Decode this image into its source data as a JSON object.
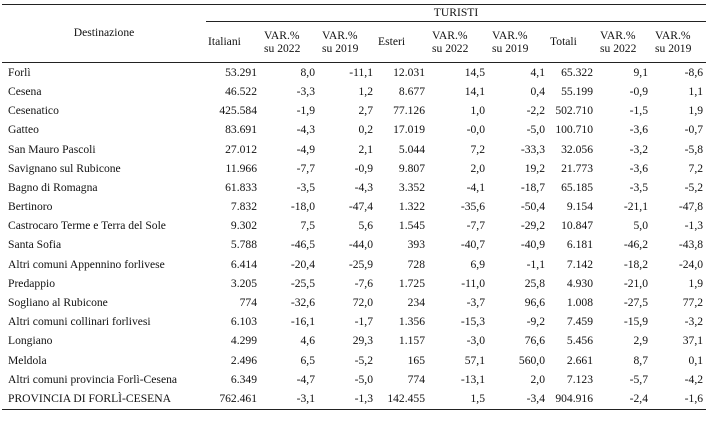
{
  "header": {
    "destination_label": "Destinazione",
    "group_label": "TURISTI",
    "columns": [
      "Italiani",
      "VAR.%\nsu 2022",
      "VAR.%\nsu 2019",
      "Esteri",
      "VAR.%\nsu 2022",
      "VAR.%\nsu 2019",
      "Totali",
      "VAR.%\nsu 2022",
      "VAR.%\nsu 2019"
    ]
  },
  "rows": [
    [
      "Forlì",
      "53.291",
      "8,0",
      "-11,1",
      "12.031",
      "14,5",
      "4,1",
      "65.322",
      "9,1",
      "-8,6"
    ],
    [
      "Cesena",
      "46.522",
      "-3,3",
      "1,2",
      "8.677",
      "14,1",
      "0,4",
      "55.199",
      "-0,9",
      "1,1"
    ],
    [
      "Cesenatico",
      "425.584",
      "-1,9",
      "2,7",
      "77.126",
      "1,0",
      "-2,2",
      "502.710",
      "-1,5",
      "1,9"
    ],
    [
      "Gatteo",
      "83.691",
      "-4,3",
      "0,2",
      "17.019",
      "-0,0",
      "-5,0",
      "100.710",
      "-3,6",
      "-0,7"
    ],
    [
      "San Mauro Pascoli",
      "27.012",
      "-4,9",
      "2,1",
      "5.044",
      "7,2",
      "-33,3",
      "32.056",
      "-3,2",
      "-5,8"
    ],
    [
      "Savignano sul Rubicone",
      "11.966",
      "-7,7",
      "-0,9",
      "9.807",
      "2,0",
      "19,2",
      "21.773",
      "-3,6",
      "7,2"
    ],
    [
      "Bagno di Romagna",
      "61.833",
      "-3,5",
      "-4,3",
      "3.352",
      "-4,1",
      "-18,7",
      "65.185",
      "-3,5",
      "-5,2"
    ],
    [
      "Bertinoro",
      "7.832",
      "-18,0",
      "-47,4",
      "1.322",
      "-35,6",
      "-50,4",
      "9.154",
      "-21,1",
      "-47,8"
    ],
    [
      "Castrocaro Terme e Terra del Sole",
      "9.302",
      "7,5",
      "5,6",
      "1.545",
      "-7,7",
      "-29,2",
      "10.847",
      "5,0",
      "-1,3"
    ],
    [
      "Santa Sofia",
      "5.788",
      "-46,5",
      "-44,0",
      "393",
      "-40,7",
      "-40,9",
      "6.181",
      "-46,2",
      "-43,8"
    ],
    [
      "Altri comuni Appennino forlivese",
      "6.414",
      "-20,4",
      "-25,9",
      "728",
      "6,9",
      "-1,1",
      "7.142",
      "-18,2",
      "-24,0"
    ],
    [
      "Predappio",
      "3.205",
      "-25,5",
      "-7,6",
      "1.725",
      "-11,0",
      "25,8",
      "4.930",
      "-21,0",
      "1,9"
    ],
    [
      "Sogliano al Rubicone",
      "774",
      "-32,6",
      "72,0",
      "234",
      "-3,7",
      "96,6",
      "1.008",
      "-27,5",
      "77,2"
    ],
    [
      "Altri comuni collinari forlivesi",
      "6.103",
      "-16,1",
      "-1,7",
      "1.356",
      "-15,3",
      "-9,2",
      "7.459",
      "-15,9",
      "-3,2"
    ],
    [
      "Longiano",
      "4.299",
      "4,6",
      "29,3",
      "1.157",
      "-3,0",
      "76,6",
      "5.456",
      "2,9",
      "37,1"
    ],
    [
      "Meldola",
      "2.496",
      "6,5",
      "-5,2",
      "165",
      "57,1",
      "560,0",
      "2.661",
      "8,7",
      "0,1"
    ],
    [
      "Altri comuni provincia Forlì-Cesena",
      "6.349",
      "-4,7",
      "-5,0",
      "774",
      "-13,1",
      "2,0",
      "7.123",
      "-5,7",
      "-4,2"
    ]
  ],
  "total": [
    "PROVINCIA DI FORLÌ-CESENA",
    "762.461",
    "-3,1",
    "-1,3",
    "142.455",
    "1,5",
    "-3,4",
    "904.916",
    "-2,4",
    "-1,6"
  ]
}
